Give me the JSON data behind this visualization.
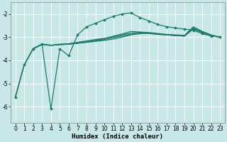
{
  "xlabel": "Humidex (Indice chaleur)",
  "ylabel": "",
  "bg_color": "#c8e8e8",
  "grid_color": "#ffffff",
  "line_color": "#1a7a6a",
  "xlim": [
    -0.5,
    23.5
  ],
  "ylim": [
    -6.7,
    -1.5
  ],
  "yticks": [
    -6,
    -5,
    -4,
    -3,
    -2
  ],
  "xticks": [
    0,
    1,
    2,
    3,
    4,
    5,
    6,
    7,
    8,
    9,
    10,
    11,
    12,
    13,
    14,
    15,
    16,
    17,
    18,
    19,
    20,
    21,
    22,
    23
  ],
  "lines": [
    {
      "x": [
        0,
        1,
        2,
        3,
        4,
        5,
        6,
        7,
        8,
        9,
        10,
        11,
        12,
        13,
        14,
        15,
        16,
        17,
        18,
        19,
        20,
        21,
        22,
        23
      ],
      "y": [
        -5.6,
        -4.2,
        -3.5,
        -3.3,
        -6.1,
        -3.5,
        -3.8,
        -2.9,
        -2.55,
        -2.4,
        -2.25,
        -2.1,
        -2.0,
        -1.95,
        -2.15,
        -2.3,
        -2.45,
        -2.55,
        -2.6,
        -2.65,
        -2.7,
        -2.85,
        -2.95,
        -3.0
      ],
      "marker": "D",
      "markersize": 2.0,
      "lw": 0.9
    },
    {
      "x": [
        0,
        1,
        2,
        3,
        4,
        5,
        6,
        7,
        8,
        9,
        10,
        11,
        12,
        13,
        14,
        15,
        16,
        17,
        18,
        19,
        20,
        21,
        22,
        23
      ],
      "y": [
        -5.6,
        -4.2,
        -3.5,
        -3.3,
        -3.35,
        -3.3,
        -3.28,
        -3.22,
        -3.16,
        -3.1,
        -3.05,
        -2.98,
        -2.9,
        -2.82,
        -2.78,
        -2.8,
        -2.84,
        -2.88,
        -2.9,
        -2.92,
        -2.55,
        -2.75,
        -2.9,
        -3.0
      ],
      "marker": null,
      "markersize": 0,
      "lw": 0.9
    },
    {
      "x": [
        0,
        1,
        2,
        3,
        4,
        5,
        6,
        7,
        8,
        9,
        10,
        11,
        12,
        13,
        14,
        15,
        16,
        17,
        18,
        19,
        20,
        21,
        22,
        23
      ],
      "y": [
        -5.6,
        -4.2,
        -3.5,
        -3.3,
        -3.35,
        -3.32,
        -3.3,
        -3.26,
        -3.22,
        -3.18,
        -3.14,
        -3.08,
        -3.0,
        -2.9,
        -2.85,
        -2.82,
        -2.86,
        -2.9,
        -2.93,
        -2.95,
        -2.6,
        -2.8,
        -2.92,
        -3.0
      ],
      "marker": null,
      "markersize": 0,
      "lw": 0.9
    },
    {
      "x": [
        2,
        3,
        4,
        5,
        6,
        7,
        8,
        9,
        10,
        11,
        12,
        13,
        14,
        15,
        16,
        17,
        18,
        19,
        20,
        21,
        22,
        23
      ],
      "y": [
        -3.5,
        -3.32,
        -3.35,
        -3.32,
        -3.3,
        -3.26,
        -3.22,
        -3.16,
        -3.1,
        -3.02,
        -2.95,
        -2.87,
        -2.82,
        -2.84,
        -2.88,
        -2.9,
        -2.93,
        -2.95,
        -2.62,
        -2.78,
        -2.92,
        -3.0
      ],
      "marker": null,
      "markersize": 0,
      "lw": 0.9
    },
    {
      "x": [
        2,
        3,
        4,
        5,
        6,
        7,
        8,
        9,
        10,
        11,
        12,
        13,
        14,
        15,
        16,
        17,
        18,
        19,
        20,
        21,
        22,
        23
      ],
      "y": [
        -3.5,
        -3.32,
        -3.35,
        -3.32,
        -3.3,
        -3.26,
        -3.2,
        -3.14,
        -3.06,
        -2.96,
        -2.86,
        -2.75,
        -2.78,
        -2.82,
        -2.86,
        -2.9,
        -2.92,
        -2.95,
        -2.65,
        -2.8,
        -2.93,
        -3.0
      ],
      "marker": null,
      "markersize": 0,
      "lw": 0.9
    }
  ]
}
